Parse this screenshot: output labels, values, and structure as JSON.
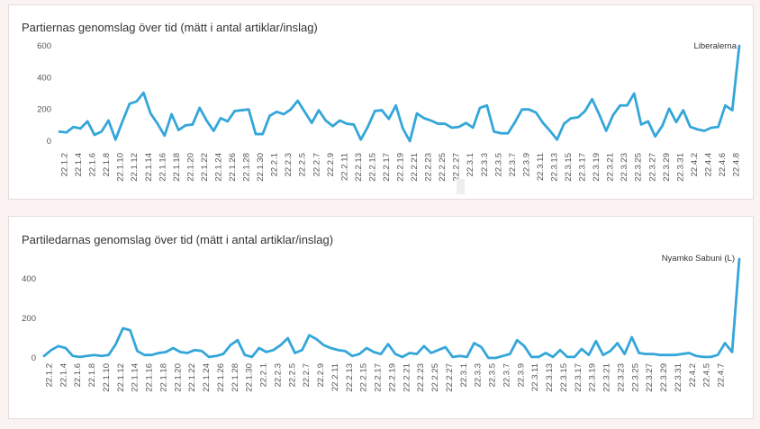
{
  "chart_data": [
    {
      "type": "line",
      "title": "Partiernas genomslag över tid (mätt i antal artiklar/inslag)",
      "ylim": [
        0,
        600
      ],
      "yticks": [
        0,
        200,
        400,
        600
      ],
      "series_label": "Liberalerna",
      "color": "#34a6d9",
      "tick_labels": [
        "22.1.2",
        "22.1.4",
        "22.1.6",
        "22.1.8",
        "22.1.10",
        "22.1.12",
        "22.1.14",
        "22.1.16",
        "22.1.18",
        "22.1.20",
        "22.1.22",
        "22.1.24",
        "22.1.26",
        "22.1.28",
        "22.1.30",
        "22.2.1",
        "22.2.3",
        "22.2.5",
        "22.2.7",
        "22.2.9",
        "22.2.11",
        "22.2.13",
        "22.2.15",
        "22.2.17",
        "22.2.19",
        "22.2.21",
        "22.2.23",
        "22.2.25",
        "22.2.27",
        "22.3.1",
        "22.3.3",
        "22.3.5",
        "22.3.7",
        "22.3.9",
        "22.3.11",
        "22.3.13",
        "22.3.15",
        "22.3.17",
        "22.3.19",
        "22.3.21",
        "22.3.23",
        "22.3.25",
        "22.3.27",
        "22.3.29",
        "22.3.31",
        "22.4.2",
        "22.4.4",
        "22.4.6",
        "22.4.8"
      ],
      "values": [
        60,
        55,
        90,
        80,
        125,
        40,
        60,
        130,
        10,
        125,
        235,
        250,
        305,
        175,
        110,
        35,
        170,
        70,
        100,
        105,
        210,
        130,
        65,
        145,
        125,
        190,
        195,
        200,
        45,
        45,
        160,
        185,
        170,
        200,
        255,
        185,
        115,
        195,
        130,
        95,
        130,
        110,
        105,
        10,
        90,
        190,
        195,
        140,
        225,
        80,
        0,
        175,
        145,
        130,
        110,
        110,
        85,
        90,
        115,
        85,
        210,
        225,
        60,
        50,
        50,
        120,
        200,
        200,
        180,
        115,
        65,
        10,
        110,
        145,
        150,
        190,
        265,
        170,
        65,
        165,
        225,
        225,
        300,
        105,
        125,
        30,
        95,
        205,
        120,
        195,
        90,
        75,
        65,
        85,
        90,
        225,
        195,
        600
      ]
    },
    {
      "type": "line",
      "title": "Partiledarnas genomslag över tid (mätt i antal artiklar/inslag)",
      "ylim": [
        0,
        500
      ],
      "yticks": [
        0,
        200,
        400
      ],
      "series_label": "Nyamko Sabuni (L)",
      "color": "#34a6d9",
      "tick_labels": [
        "22.1.2",
        "22.1.4",
        "22.1.6",
        "22.1.8",
        "22.1.10",
        "22.1.12",
        "22.1.14",
        "22.1.16",
        "22.1.18",
        "22.1.20",
        "22.1.22",
        "22.1.24",
        "22.1.26",
        "22.1.28",
        "22.1.30",
        "22.2.1",
        "22.2.3",
        "22.2.5",
        "22.2.7",
        "22.2.9",
        "22.2.11",
        "22.2.13",
        "22.2.15",
        "22.2.17",
        "22.2.19",
        "22.2.21",
        "22.2.23",
        "22.2.25",
        "22.2.27",
        "22.3.1",
        "22.3.3",
        "22.3.5",
        "22.3.7",
        "22.3.9",
        "22.3.11",
        "22.3.13",
        "22.3.15",
        "22.3.17",
        "22.3.19",
        "22.3.21",
        "22.3.23",
        "22.3.25",
        "22.3.27",
        "22.3.29",
        "22.3.31",
        "22.4.2",
        "22.4.5",
        "22.4.7"
      ],
      "values": [
        10,
        40,
        60,
        50,
        10,
        5,
        10,
        15,
        10,
        15,
        70,
        150,
        140,
        35,
        15,
        15,
        25,
        30,
        50,
        30,
        25,
        40,
        35,
        5,
        10,
        20,
        65,
        90,
        15,
        5,
        50,
        30,
        40,
        65,
        100,
        25,
        40,
        115,
        95,
        65,
        50,
        40,
        35,
        10,
        20,
        50,
        30,
        20,
        70,
        20,
        5,
        25,
        20,
        60,
        25,
        40,
        55,
        5,
        10,
        5,
        75,
        55,
        0,
        0,
        10,
        20,
        90,
        60,
        5,
        5,
        25,
        5,
        40,
        5,
        5,
        45,
        15,
        85,
        15,
        35,
        75,
        20,
        105,
        25,
        20,
        20,
        15,
        15,
        15,
        20,
        25,
        10,
        5,
        5,
        15,
        75,
        30,
        500
      ]
    }
  ]
}
